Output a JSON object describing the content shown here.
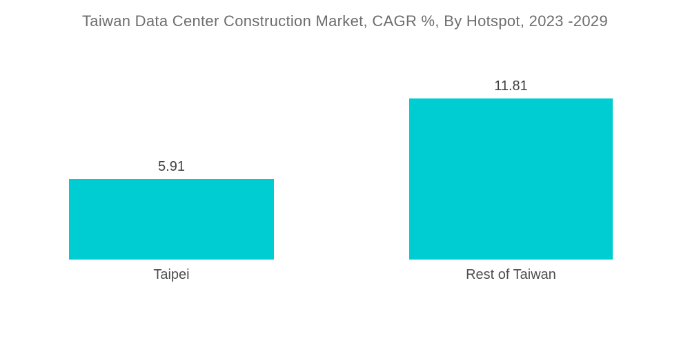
{
  "chart_data": {
    "type": "bar",
    "title": "Taiwan Data Center Construction Market, CAGR %, By Hotspot, 2023 -2029",
    "categories": [
      "Taipei",
      "Rest of Taiwan"
    ],
    "values": [
      5.91,
      11.81
    ],
    "value_labels": [
      "5.91",
      "11.81"
    ],
    "xlabel": "",
    "ylabel": "",
    "ylim": [
      0,
      11.81
    ],
    "grid": false,
    "legend": false,
    "axes_visible": false,
    "orientation": "vertical",
    "colors": {
      "bar": "#00cdd2",
      "title_text": "#6d6d6d",
      "value_text": "#3f3f3f",
      "category_text": "#4e4e4e",
      "background": "#ffffff"
    }
  }
}
